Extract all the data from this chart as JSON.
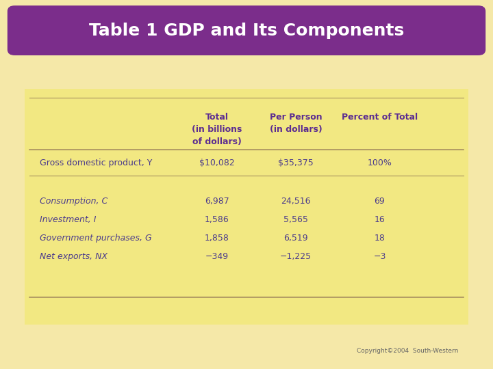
{
  "title": "Table 1 GDP and Its Components",
  "title_bg_color": "#7B2D8B",
  "title_text_color": "#FFFFFF",
  "background_color": "#F5E8A8",
  "table_panel_color": "#F0E68C",
  "header_text_color": "#5C2D91",
  "body_text_color": "#4B3B8C",
  "line_color": "#A89060",
  "copyright": "Copyright©2004  South-Western",
  "col_header_1": "Total\n(in billions\nof dollars)",
  "col_header_2": "Per Person\n(in dollars)",
  "col_header_3": "Percent of Total",
  "gdp_label": "Gross domestic product, Y",
  "gdp_total": "$10,082",
  "gdp_per": "$35,375",
  "gdp_pct": "100%",
  "comp_labels": [
    "Consumption, C",
    "Investment, I",
    "Government purchases, G",
    "Net exports, NX"
  ],
  "comp_totals": [
    "6,987",
    "1,586",
    "1,858",
    "−349"
  ],
  "comp_per": [
    "24,516",
    "5,565",
    "6,519",
    "−1,225"
  ],
  "comp_pct": [
    "69",
    "16",
    "18",
    "−3"
  ],
  "title_fontsize": 18,
  "header_fontsize": 9,
  "body_fontsize": 9
}
